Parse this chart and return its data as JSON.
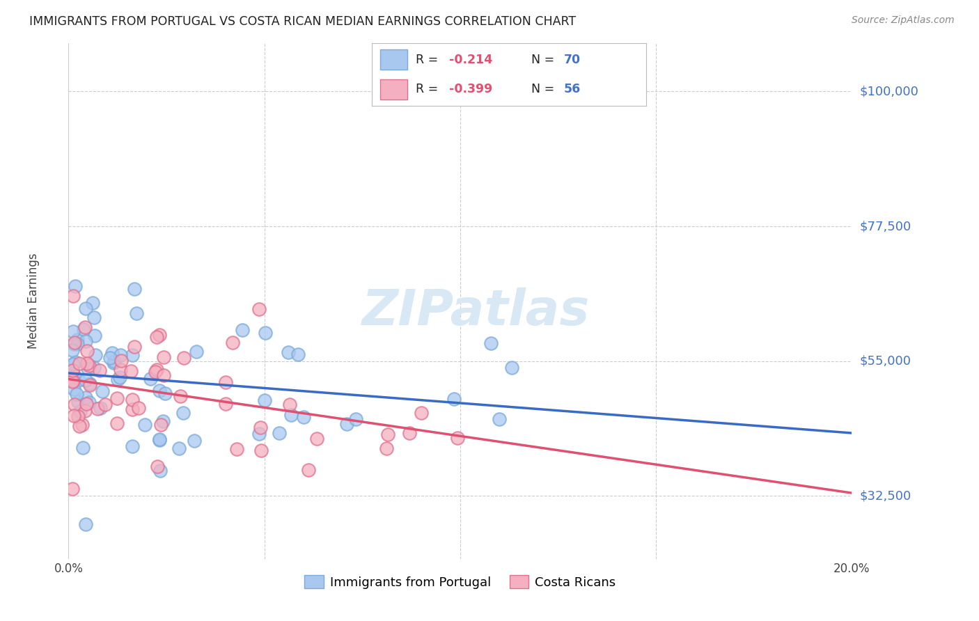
{
  "title": "IMMIGRANTS FROM PORTUGAL VS COSTA RICAN MEDIAN EARNINGS CORRELATION CHART",
  "source": "Source: ZipAtlas.com",
  "ylabel": "Median Earnings",
  "yticks": [
    32500,
    55000,
    77500,
    100000
  ],
  "ytick_labels": [
    "$32,500",
    "$55,000",
    "$77,500",
    "$100,000"
  ],
  "xlim": [
    0.0,
    0.2
  ],
  "ylim": [
    22000,
    108000
  ],
  "legend_label1": "Immigrants from Portugal",
  "legend_label2": "Costa Ricans",
  "color_blue": "#A8C8F0",
  "color_blue_edge": "#7BAAD8",
  "color_pink": "#F4B0C0",
  "color_pink_edge": "#E07090",
  "color_trend_blue": "#3A6BC4",
  "color_trend_pink": "#E05070",
  "color_ytick": "#4472C4",
  "color_r_neg": "#E05070",
  "color_n": "#4472C4",
  "background_color": "#FFFFFF",
  "title_color": "#222222",
  "grid_color": "#CCCCCC",
  "watermark": "ZIPatlas",
  "watermark_color": "#D8E8F4",
  "portugal_seeds": [
    42,
    12345
  ],
  "costarican_seeds": [
    17,
    54321
  ]
}
